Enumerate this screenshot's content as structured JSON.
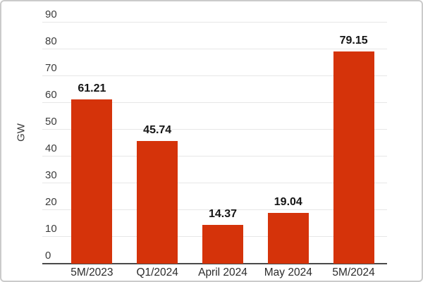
{
  "chart_data": {
    "type": "bar",
    "categories": [
      "5M/2023",
      "Q1/2024",
      "April 2024",
      "May 2024",
      "5M/2024"
    ],
    "values": [
      61.21,
      45.74,
      14.37,
      19.04,
      79.15
    ],
    "value_labels": [
      "61.21",
      "45.74",
      "14.37",
      "19.04",
      "79.15"
    ],
    "title": "",
    "xlabel": "",
    "ylabel": "GW",
    "ylim": [
      0,
      90
    ],
    "yticks": [
      0,
      10,
      20,
      30,
      40,
      50,
      60,
      70,
      80,
      90
    ],
    "grid": true,
    "legend": false,
    "colors": {
      "bar": "#d5330a",
      "gridline": "#e7e7e7",
      "axis_line": "#4a4a4a",
      "tick_text": "#3c3c3c",
      "value_text": "#151515",
      "frame_border": "#cbcbcb",
      "background": "#ffffff"
    }
  }
}
